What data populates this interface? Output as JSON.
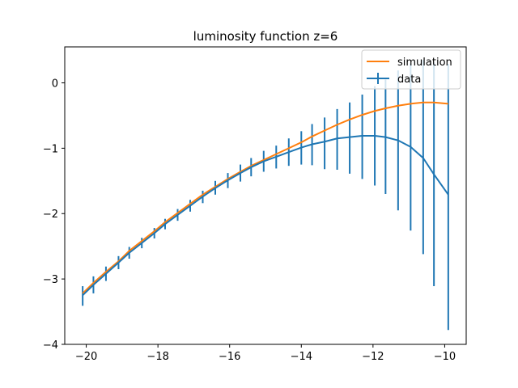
{
  "chart_data": {
    "type": "line",
    "title": "luminosity function z=6",
    "xlabel": "",
    "ylabel": "",
    "xlim": [
      -20.6,
      -9.4
    ],
    "ylim": [
      -4,
      0.55
    ],
    "xticks": [
      -20,
      -18,
      -16,
      -14,
      -12,
      -10
    ],
    "yticks": [
      -4,
      -3,
      -2,
      -1,
      0
    ],
    "xtick_labels": [
      "−20",
      "−18",
      "−16",
      "−14",
      "−12",
      "−10"
    ],
    "ytick_labels": [
      "−4",
      "−3",
      "−2",
      "−1",
      "0"
    ],
    "grid": false,
    "legend_position": "top-right",
    "series": [
      {
        "name": "simulation",
        "kind": "line",
        "color": "#ff7f0e",
        "x": [
          -20.1,
          -19.8,
          -19.45,
          -19.1,
          -18.8,
          -18.45,
          -18.1,
          -17.8,
          -17.45,
          -17.1,
          -16.75,
          -16.4,
          -16.05,
          -15.7,
          -15.4,
          -15.05,
          -14.7,
          -14.35,
          -14.0,
          -13.7,
          -13.35,
          -13.0,
          -12.65,
          -12.3,
          -11.95,
          -11.65,
          -11.3,
          -10.95,
          -10.6,
          -10.3,
          -9.9
        ],
        "y": [
          -3.22,
          -3.06,
          -2.89,
          -2.73,
          -2.57,
          -2.42,
          -2.27,
          -2.13,
          -1.99,
          -1.85,
          -1.71,
          -1.59,
          -1.47,
          -1.36,
          -1.27,
          -1.18,
          -1.09,
          -1.0,
          -0.91,
          -0.82,
          -0.73,
          -0.64,
          -0.56,
          -0.49,
          -0.43,
          -0.39,
          -0.35,
          -0.32,
          -0.3,
          -0.3,
          -0.32
        ]
      },
      {
        "name": "data",
        "kind": "errorbar",
        "color": "#1f77b4",
        "x": [
          -20.1,
          -19.8,
          -19.45,
          -19.1,
          -18.8,
          -18.45,
          -18.1,
          -17.8,
          -17.45,
          -17.1,
          -16.75,
          -16.4,
          -16.05,
          -15.7,
          -15.4,
          -15.05,
          -14.7,
          -14.35,
          -14.0,
          -13.7,
          -13.35,
          -13.0,
          -12.65,
          -12.3,
          -11.95,
          -11.65,
          -11.3,
          -10.95,
          -10.6,
          -10.3,
          -9.9
        ],
        "y": [
          -3.25,
          -3.09,
          -2.92,
          -2.75,
          -2.6,
          -2.45,
          -2.3,
          -2.16,
          -2.02,
          -1.88,
          -1.74,
          -1.61,
          -1.49,
          -1.38,
          -1.29,
          -1.2,
          -1.13,
          -1.06,
          -0.99,
          -0.94,
          -0.9,
          -0.85,
          -0.83,
          -0.81,
          -0.81,
          -0.83,
          -0.88,
          -0.98,
          -1.15,
          -1.4,
          -1.71
        ],
        "yerr_low": [
          0.16,
          0.13,
          0.11,
          0.1,
          0.09,
          0.08,
          0.08,
          0.08,
          0.09,
          0.09,
          0.1,
          0.1,
          0.12,
          0.13,
          0.14,
          0.16,
          0.18,
          0.21,
          0.26,
          0.32,
          0.42,
          0.48,
          0.56,
          0.66,
          0.76,
          0.87,
          1.07,
          1.28,
          1.47,
          1.71,
          2.07
        ],
        "yerr_high": [
          0.14,
          0.13,
          0.11,
          0.1,
          0.09,
          0.08,
          0.08,
          0.08,
          0.09,
          0.09,
          0.09,
          0.11,
          0.11,
          0.13,
          0.14,
          0.16,
          0.17,
          0.21,
          0.25,
          0.31,
          0.37,
          0.45,
          0.53,
          0.63,
          0.76,
          0.88,
          1.07,
          1.28,
          1.5,
          1.71,
          2.0
        ]
      }
    ]
  }
}
